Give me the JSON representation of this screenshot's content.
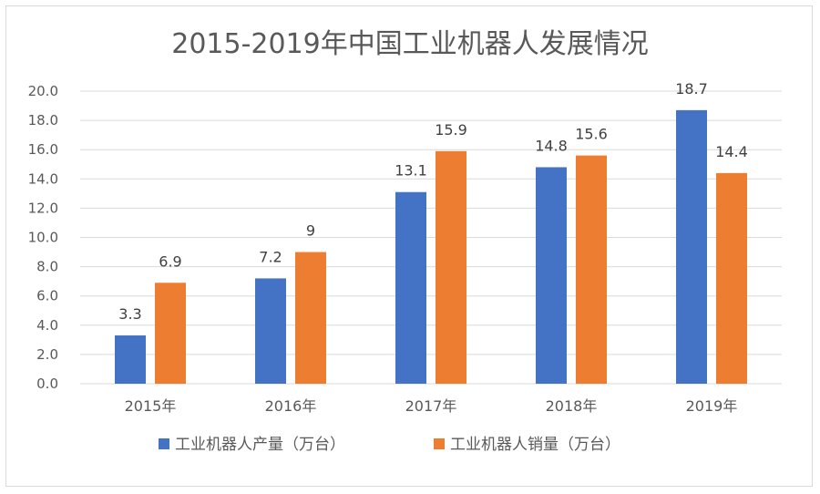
{
  "chart_data": {
    "type": "bar",
    "title": "2015-2019年中国工业机器人发展情况",
    "categories": [
      "2015年",
      "2016年",
      "2017年",
      "2018年",
      "2019年"
    ],
    "series": [
      {
        "name": "工业机器人产量（万台）",
        "color": "#4472c4",
        "values": [
          3.3,
          7.2,
          13.1,
          14.8,
          18.7
        ],
        "labels": [
          "3.3",
          "7.2",
          "13.1",
          "14.8",
          "18.7"
        ]
      },
      {
        "name": "工业机器人销量（万台）",
        "color": "#ed7d31",
        "values": [
          6.9,
          9,
          15.9,
          15.6,
          14.4
        ],
        "labels": [
          "6.9",
          "9",
          "15.9",
          "15.6",
          "14.4"
        ]
      }
    ],
    "ylim": [
      0,
      20
    ],
    "yticks": [
      "0.0",
      "2.0",
      "4.0",
      "6.0",
      "8.0",
      "10.0",
      "12.0",
      "14.0",
      "16.0",
      "18.0",
      "20.0"
    ],
    "grid": true,
    "legend": "bottom"
  }
}
